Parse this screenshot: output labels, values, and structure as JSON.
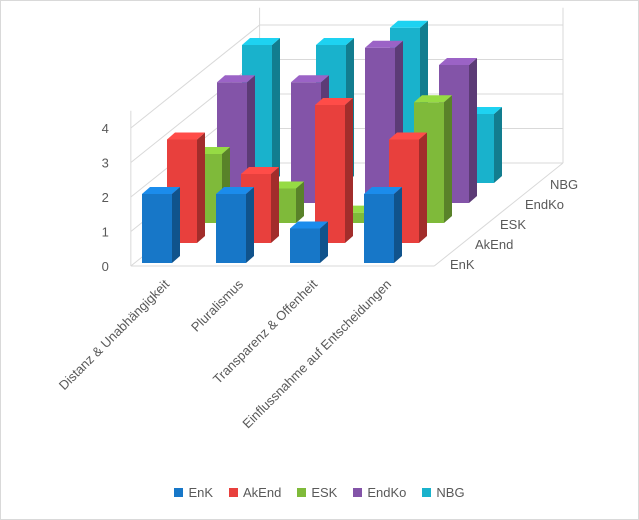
{
  "chart_data": {
    "type": "bar",
    "subtype": "3d-column",
    "categories": [
      "Distanz & Unabhängigkeit",
      "Pluralismus",
      "Transparenz & Offenheit",
      "Einflussnahme auf Entscheidungen"
    ],
    "series": [
      {
        "name": "EnK",
        "color": "#1777c8",
        "values": [
          2.0,
          2.0,
          1.0,
          2.0
        ]
      },
      {
        "name": "AkEnd",
        "color": "#e8403d",
        "values": [
          3.0,
          2.0,
          4.0,
          3.0
        ]
      },
      {
        "name": "ESK",
        "color": "#7fba3a",
        "values": [
          2.0,
          1.0,
          0.3,
          3.5
        ]
      },
      {
        "name": "EndKo",
        "color": "#8354a8",
        "values": [
          3.5,
          3.5,
          4.5,
          4.0
        ]
      },
      {
        "name": "NBG",
        "color": "#19b2cc",
        "values": [
          4.0,
          4.0,
          4.5,
          2.0
        ]
      }
    ],
    "z_labels": [
      "EnK",
      "AkEnd",
      "ESK",
      "EndKo",
      "NBG"
    ],
    "y_ticks": [
      "0",
      "1",
      "2",
      "3",
      "4"
    ],
    "ylim": [
      0,
      4.5
    ],
    "legend_position": "bottom",
    "grid": true
  }
}
